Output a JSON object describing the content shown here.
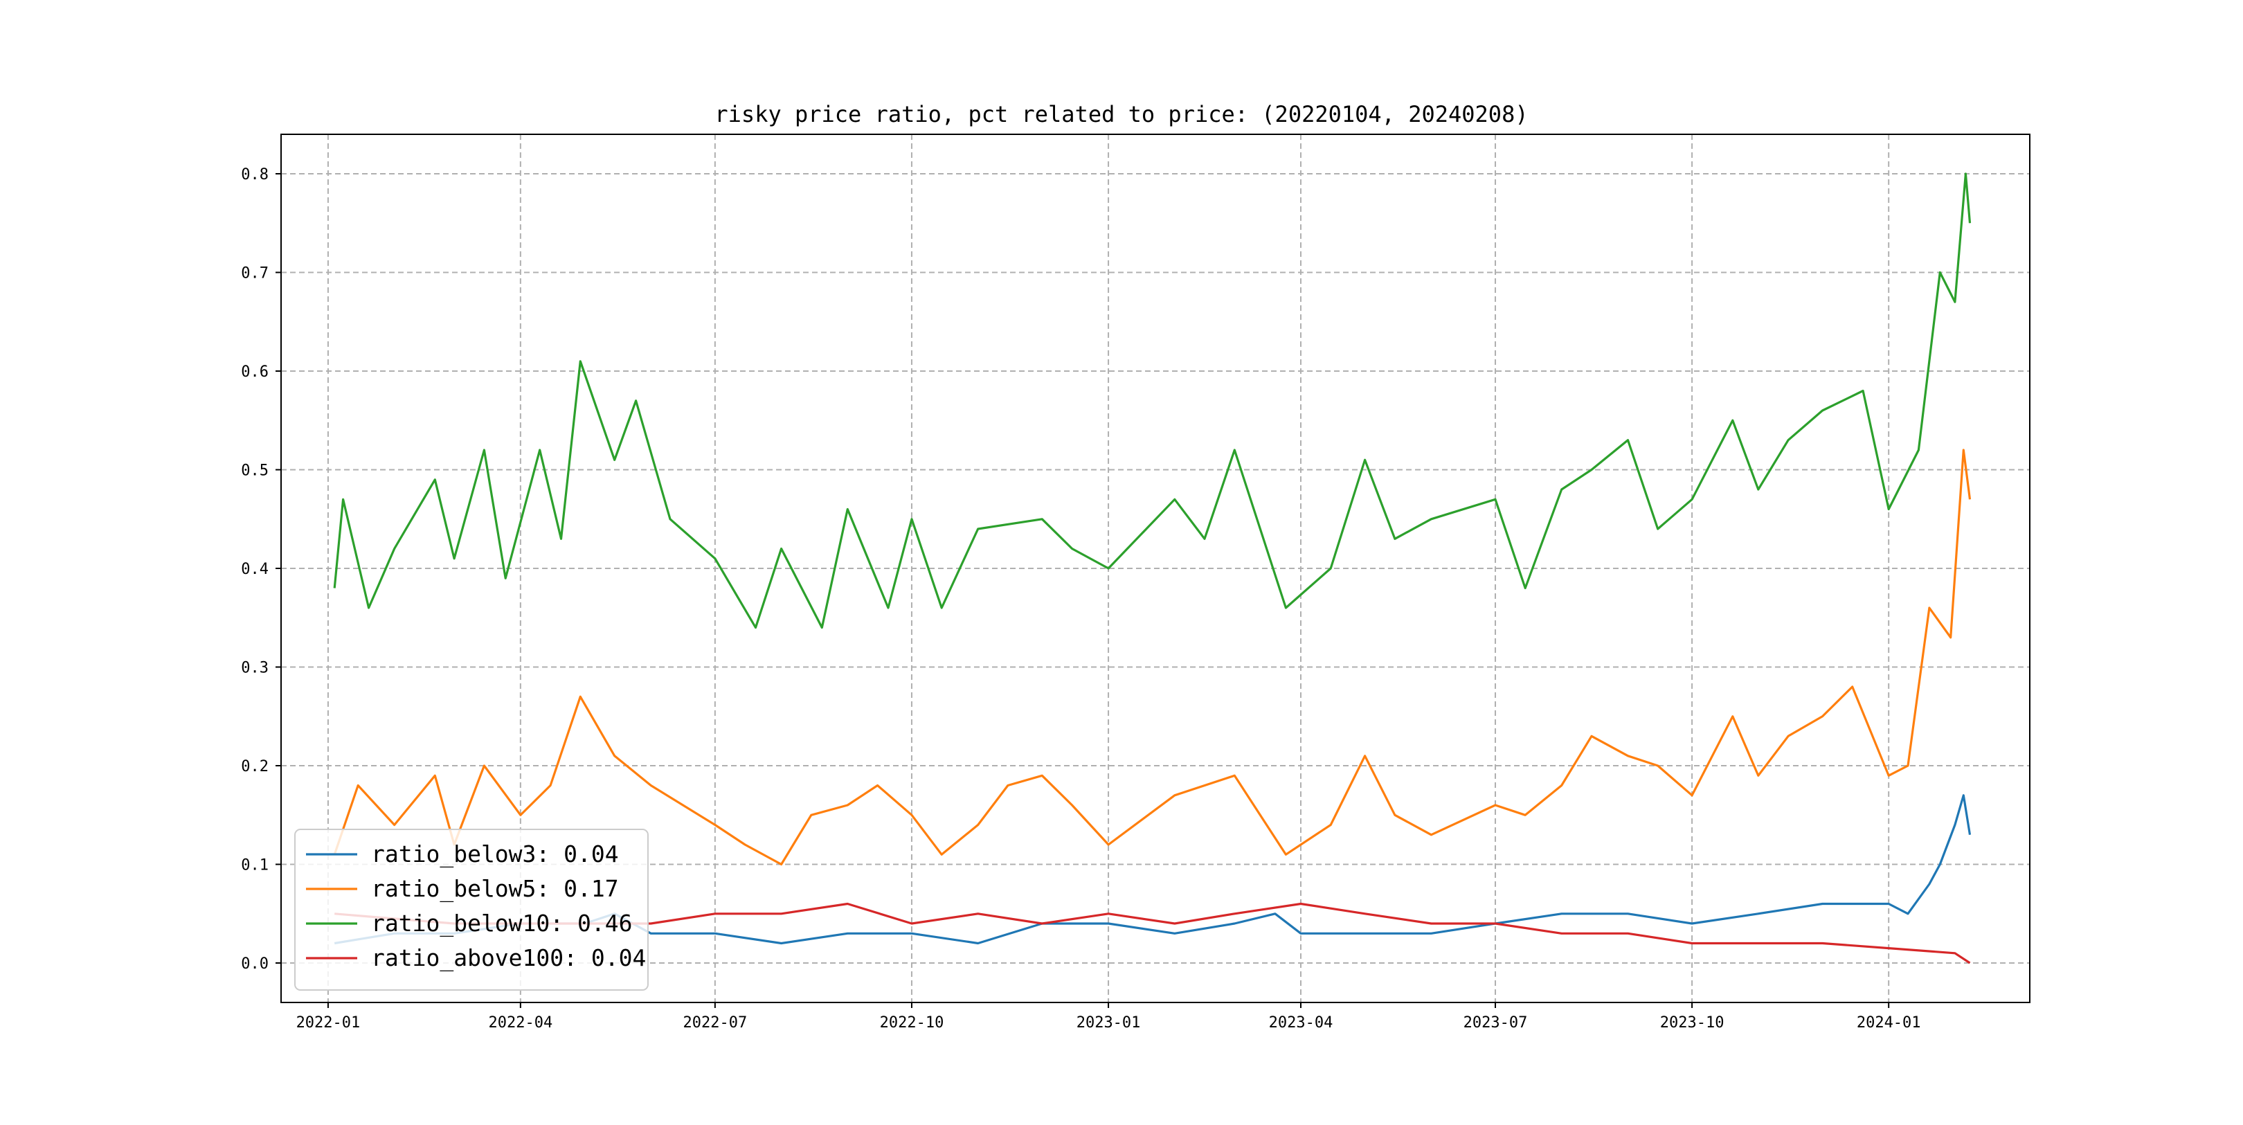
{
  "chart_data": {
    "type": "line",
    "title": "risky price ratio, pct related to price: (20220104, 20240208)",
    "xlabel": "",
    "ylabel": "",
    "x_range": [
      "2021-12-10",
      "2024-03-07"
    ],
    "ylim": [
      -0.04,
      0.84
    ],
    "x_ticks": [
      "2022-01",
      "2022-04",
      "2022-07",
      "2022-10",
      "2023-01",
      "2023-04",
      "2023-07",
      "2023-10",
      "2024-01"
    ],
    "y_ticks": [
      "0.0",
      "0.1",
      "0.2",
      "0.3",
      "0.4",
      "0.5",
      "0.6",
      "0.7",
      "0.8"
    ],
    "grid": true,
    "legend_position": "lower-left",
    "series": [
      {
        "name": "ratio_below3: 0.04",
        "color": "#1f77b4",
        "points": [
          [
            "2022-01-04",
            0.02
          ],
          [
            "2022-02-01",
            0.03
          ],
          [
            "2022-03-01",
            0.03
          ],
          [
            "2022-04-01",
            0.04
          ],
          [
            "2022-05-01",
            0.04
          ],
          [
            "2022-05-15",
            0.05
          ],
          [
            "2022-06-01",
            0.03
          ],
          [
            "2022-07-01",
            0.03
          ],
          [
            "2022-08-01",
            0.02
          ],
          [
            "2022-09-01",
            0.03
          ],
          [
            "2022-10-01",
            0.03
          ],
          [
            "2022-11-01",
            0.02
          ],
          [
            "2022-12-01",
            0.04
          ],
          [
            "2023-01-01",
            0.04
          ],
          [
            "2023-02-01",
            0.03
          ],
          [
            "2023-03-01",
            0.04
          ],
          [
            "2023-03-20",
            0.05
          ],
          [
            "2023-04-01",
            0.03
          ],
          [
            "2023-05-01",
            0.03
          ],
          [
            "2023-06-01",
            0.03
          ],
          [
            "2023-07-01",
            0.04
          ],
          [
            "2023-08-01",
            0.05
          ],
          [
            "2023-09-01",
            0.05
          ],
          [
            "2023-10-01",
            0.04
          ],
          [
            "2023-11-01",
            0.05
          ],
          [
            "2023-12-01",
            0.06
          ],
          [
            "2024-01-01",
            0.06
          ],
          [
            "2024-01-10",
            0.05
          ],
          [
            "2024-01-20",
            0.08
          ],
          [
            "2024-01-25",
            0.1
          ],
          [
            "2024-02-01",
            0.14
          ],
          [
            "2024-02-05",
            0.17
          ],
          [
            "2024-02-08",
            0.13
          ]
        ]
      },
      {
        "name": "ratio_below5: 0.17",
        "color": "#ff7f0e",
        "points": [
          [
            "2022-01-04",
            0.11
          ],
          [
            "2022-01-15",
            0.18
          ],
          [
            "2022-02-01",
            0.14
          ],
          [
            "2022-02-20",
            0.19
          ],
          [
            "2022-03-01",
            0.12
          ],
          [
            "2022-03-15",
            0.2
          ],
          [
            "2022-04-01",
            0.15
          ],
          [
            "2022-04-15",
            0.18
          ],
          [
            "2022-04-29",
            0.27
          ],
          [
            "2022-05-15",
            0.21
          ],
          [
            "2022-06-01",
            0.18
          ],
          [
            "2022-07-01",
            0.14
          ],
          [
            "2022-07-15",
            0.12
          ],
          [
            "2022-08-01",
            0.1
          ],
          [
            "2022-08-15",
            0.15
          ],
          [
            "2022-09-01",
            0.16
          ],
          [
            "2022-09-15",
            0.18
          ],
          [
            "2022-10-01",
            0.15
          ],
          [
            "2022-10-15",
            0.11
          ],
          [
            "2022-11-01",
            0.14
          ],
          [
            "2022-11-15",
            0.18
          ],
          [
            "2022-12-01",
            0.19
          ],
          [
            "2022-12-15",
            0.16
          ],
          [
            "2023-01-01",
            0.12
          ],
          [
            "2023-02-01",
            0.17
          ],
          [
            "2023-03-01",
            0.19
          ],
          [
            "2023-03-25",
            0.11
          ],
          [
            "2023-04-15",
            0.14
          ],
          [
            "2023-05-01",
            0.21
          ],
          [
            "2023-05-15",
            0.15
          ],
          [
            "2023-06-01",
            0.13
          ],
          [
            "2023-07-01",
            0.16
          ],
          [
            "2023-07-15",
            0.15
          ],
          [
            "2023-08-01",
            0.18
          ],
          [
            "2023-08-15",
            0.23
          ],
          [
            "2023-09-01",
            0.21
          ],
          [
            "2023-09-15",
            0.2
          ],
          [
            "2023-10-01",
            0.17
          ],
          [
            "2023-10-20",
            0.25
          ],
          [
            "2023-11-01",
            0.19
          ],
          [
            "2023-11-15",
            0.23
          ],
          [
            "2023-12-01",
            0.25
          ],
          [
            "2023-12-15",
            0.28
          ],
          [
            "2024-01-01",
            0.19
          ],
          [
            "2024-01-10",
            0.2
          ],
          [
            "2024-01-20",
            0.36
          ],
          [
            "2024-01-30",
            0.33
          ],
          [
            "2024-02-05",
            0.52
          ],
          [
            "2024-02-08",
            0.47
          ]
        ]
      },
      {
        "name": "ratio_below10: 0.46",
        "color": "#2ca02c",
        "points": [
          [
            "2022-01-04",
            0.38
          ],
          [
            "2022-01-08",
            0.47
          ],
          [
            "2022-01-20",
            0.36
          ],
          [
            "2022-02-01",
            0.42
          ],
          [
            "2022-02-20",
            0.49
          ],
          [
            "2022-03-01",
            0.41
          ],
          [
            "2022-03-15",
            0.52
          ],
          [
            "2022-03-25",
            0.39
          ],
          [
            "2022-04-10",
            0.52
          ],
          [
            "2022-04-20",
            0.43
          ],
          [
            "2022-04-29",
            0.61
          ],
          [
            "2022-05-15",
            0.51
          ],
          [
            "2022-05-25",
            0.57
          ],
          [
            "2022-06-10",
            0.45
          ],
          [
            "2022-07-01",
            0.41
          ],
          [
            "2022-07-20",
            0.34
          ],
          [
            "2022-08-01",
            0.42
          ],
          [
            "2022-08-20",
            0.34
          ],
          [
            "2022-09-01",
            0.46
          ],
          [
            "2022-09-20",
            0.36
          ],
          [
            "2022-10-01",
            0.45
          ],
          [
            "2022-10-15",
            0.36
          ],
          [
            "2022-11-01",
            0.44
          ],
          [
            "2022-12-01",
            0.45
          ],
          [
            "2022-12-15",
            0.42
          ],
          [
            "2023-01-01",
            0.4
          ],
          [
            "2023-02-01",
            0.47
          ],
          [
            "2023-02-15",
            0.43
          ],
          [
            "2023-03-01",
            0.52
          ],
          [
            "2023-03-25",
            0.36
          ],
          [
            "2023-04-15",
            0.4
          ],
          [
            "2023-05-01",
            0.51
          ],
          [
            "2023-05-15",
            0.43
          ],
          [
            "2023-06-01",
            0.45
          ],
          [
            "2023-07-01",
            0.47
          ],
          [
            "2023-07-15",
            0.38
          ],
          [
            "2023-08-01",
            0.48
          ],
          [
            "2023-08-15",
            0.5
          ],
          [
            "2023-09-01",
            0.53
          ],
          [
            "2023-09-15",
            0.44
          ],
          [
            "2023-10-01",
            0.47
          ],
          [
            "2023-10-20",
            0.55
          ],
          [
            "2023-11-01",
            0.48
          ],
          [
            "2023-11-15",
            0.53
          ],
          [
            "2023-12-01",
            0.56
          ],
          [
            "2023-12-20",
            0.58
          ],
          [
            "2024-01-01",
            0.46
          ],
          [
            "2024-01-15",
            0.52
          ],
          [
            "2024-01-25",
            0.7
          ],
          [
            "2024-02-01",
            0.67
          ],
          [
            "2024-02-06",
            0.8
          ],
          [
            "2024-02-08",
            0.75
          ]
        ]
      },
      {
        "name": "ratio_above100: 0.04",
        "color": "#d62728",
        "points": [
          [
            "2022-01-04",
            0.05
          ],
          [
            "2022-03-01",
            0.04
          ],
          [
            "2022-05-01",
            0.04
          ],
          [
            "2022-06-01",
            0.04
          ],
          [
            "2022-07-01",
            0.05
          ],
          [
            "2022-08-01",
            0.05
          ],
          [
            "2022-09-01",
            0.06
          ],
          [
            "2022-10-01",
            0.04
          ],
          [
            "2022-11-01",
            0.05
          ],
          [
            "2022-12-01",
            0.04
          ],
          [
            "2023-01-01",
            0.05
          ],
          [
            "2023-02-01",
            0.04
          ],
          [
            "2023-03-01",
            0.05
          ],
          [
            "2023-04-01",
            0.06
          ],
          [
            "2023-05-01",
            0.05
          ],
          [
            "2023-06-01",
            0.04
          ],
          [
            "2023-07-01",
            0.04
          ],
          [
            "2023-08-01",
            0.03
          ],
          [
            "2023-09-01",
            0.03
          ],
          [
            "2023-10-01",
            0.02
          ],
          [
            "2023-11-01",
            0.02
          ],
          [
            "2023-12-01",
            0.02
          ],
          [
            "2024-01-01",
            0.015
          ],
          [
            "2024-02-01",
            0.01
          ],
          [
            "2024-02-08",
            0.0
          ]
        ]
      }
    ]
  }
}
